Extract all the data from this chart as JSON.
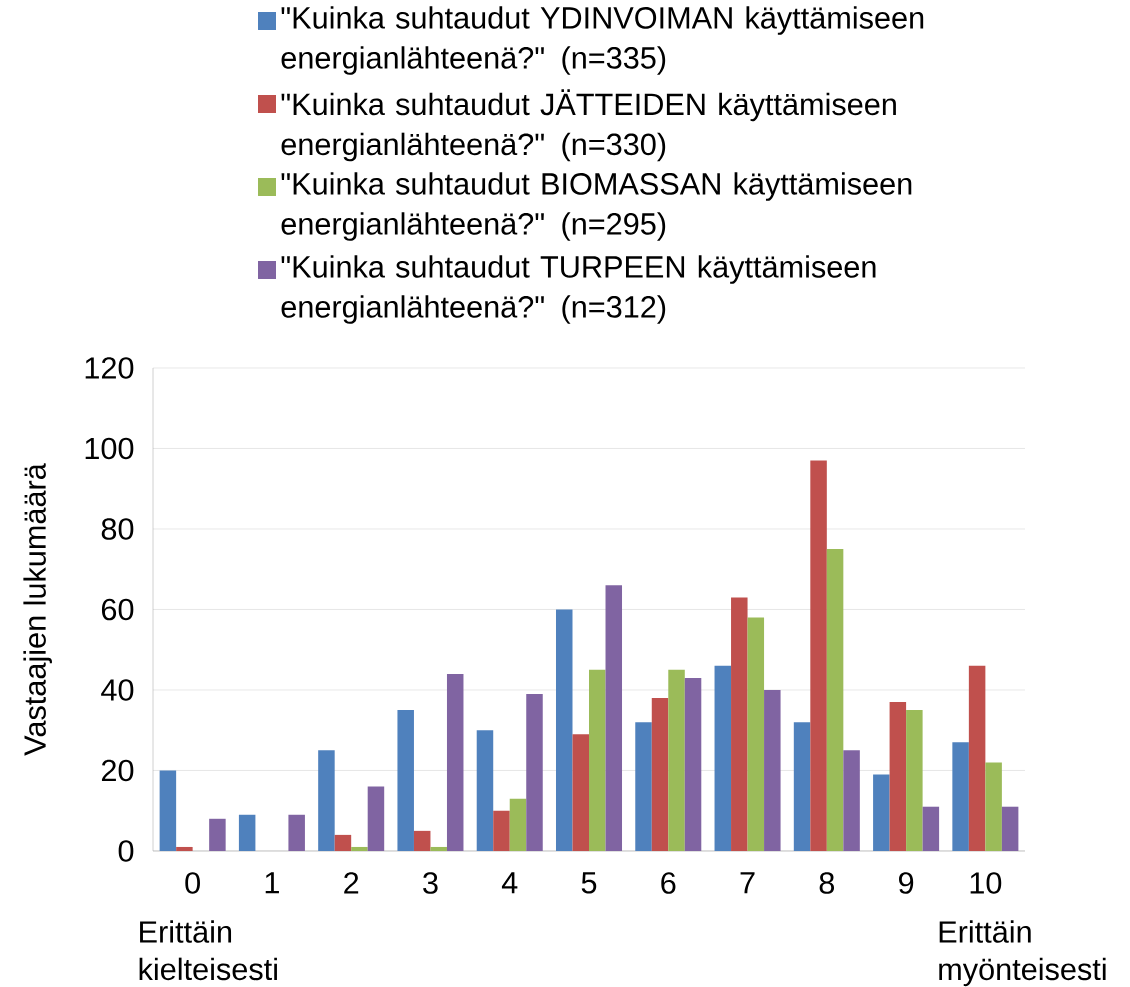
{
  "chart_data": {
    "type": "bar",
    "ylabel": "Vastaajien lukumäärä",
    "categories": [
      "0",
      "1",
      "2",
      "3",
      "4",
      "5",
      "6",
      "7",
      "8",
      "9",
      "10"
    ],
    "series": [
      {
        "name": "\"Kuinka suhtaudut YDINVOIMAN käyttämiseen energianlähteenä?\" (n=335)",
        "color": "#4f81bd",
        "values": [
          20,
          9,
          25,
          35,
          30,
          60,
          32,
          46,
          32,
          19,
          27
        ]
      },
      {
        "name": "\"Kuinka suhtaudut JÄTTEIDEN käyttämiseen energianlähteenä?\" (n=330)",
        "color": "#c0504d",
        "values": [
          1,
          0,
          4,
          5,
          10,
          29,
          38,
          63,
          97,
          37,
          46
        ]
      },
      {
        "name": "\"Kuinka suhtaudut BIOMASSAN käyttämiseen energianlähteenä?\" (n=295)",
        "color": "#9bbb59",
        "values": [
          0,
          0,
          1,
          1,
          13,
          45,
          45,
          58,
          75,
          35,
          22
        ]
      },
      {
        "name": "\"Kuinka suhtaudut TURPEEN käyttämiseen energianlähteenä?\" (n=312)",
        "color": "#8064a2",
        "values": [
          8,
          9,
          16,
          44,
          39,
          66,
          43,
          40,
          25,
          11,
          11
        ]
      }
    ],
    "ylim": [
      0,
      120
    ],
    "yticks": [
      0,
      20,
      40,
      60,
      80,
      100,
      120
    ],
    "grid": "y",
    "legend": "top",
    "annotations": [
      "Erittäin kielteisesti",
      "Erittäin myönteisesti"
    ]
  }
}
